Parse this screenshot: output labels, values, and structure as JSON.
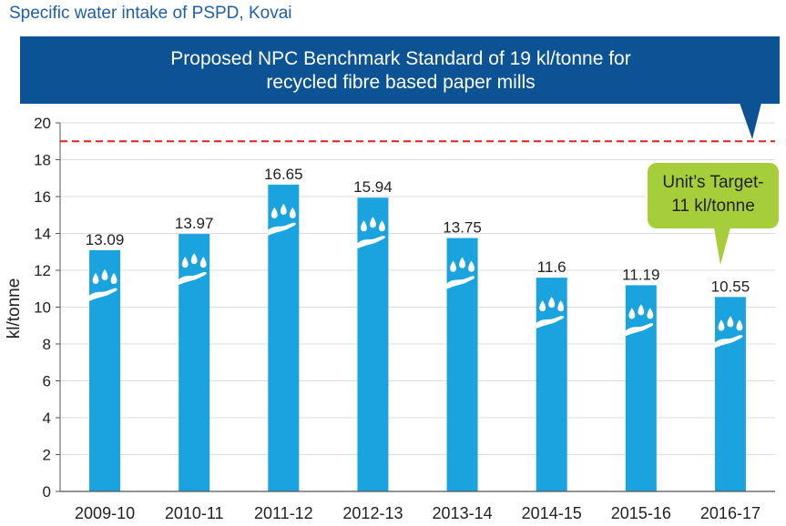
{
  "page": {
    "title": "Specific water intake of PSPD, Kovai"
  },
  "banner": {
    "line1": "Proposed NPC Benchmark Standard of 19 kl/tonne for",
    "line2": "recycled fibre based paper mills"
  },
  "target_callout": {
    "line1": "Unit’s Target-",
    "line2": "11 kl/tonne"
  },
  "colors": {
    "bar": "#1aa3df",
    "banner": "#0b5394",
    "benchmark_line": "#e02020",
    "callout": "#a6cd3a",
    "title": "#1f5fa8"
  },
  "icons": {
    "bar_icon": "hand-water-drops-icon"
  },
  "chart_data": {
    "type": "bar",
    "title": "Specific water intake of PSPD, Kovai",
    "xlabel": "",
    "ylabel": "kl/tonne",
    "categories": [
      "2009-10",
      "2010-11",
      "2011-12",
      "2012-13",
      "2013-14",
      "2014-15",
      "2015-16",
      "2016-17"
    ],
    "values": [
      13.09,
      13.97,
      16.65,
      15.94,
      13.75,
      11.6,
      11.19,
      10.55
    ],
    "value_labels": [
      "13.09",
      "13.97",
      "16.65",
      "15.94",
      "13.75",
      "11.6",
      "11.19",
      "10.55"
    ],
    "ylim": [
      0,
      20
    ],
    "yticks": [
      0,
      2,
      4,
      6,
      8,
      10,
      12,
      14,
      16,
      18,
      20
    ],
    "benchmark": 19,
    "grid": true
  }
}
